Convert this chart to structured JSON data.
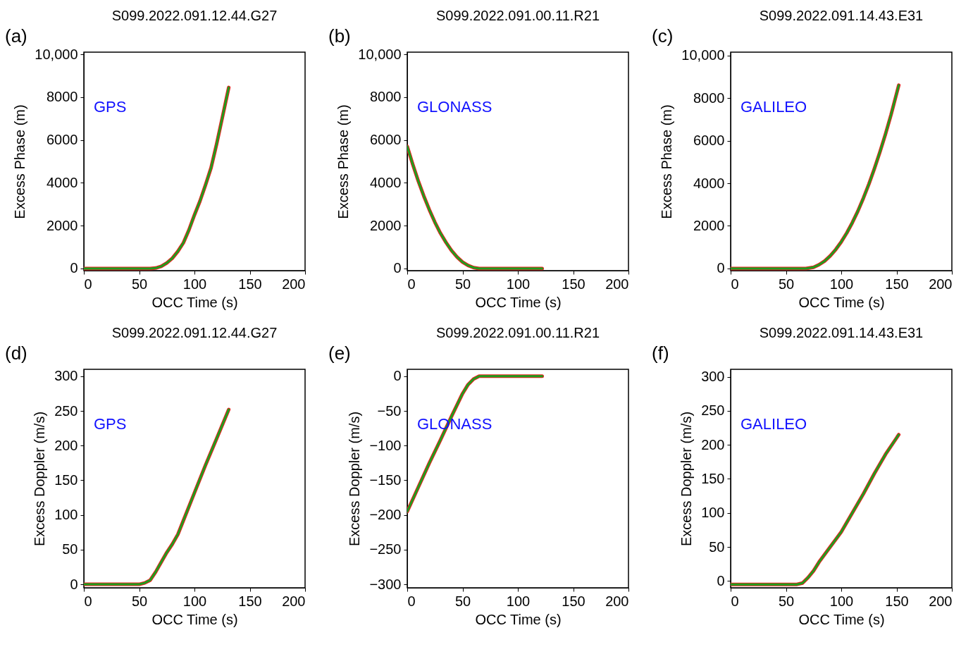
{
  "chart_data": [
    {
      "type": "line",
      "title": "S099.2022.091.12.44.G27",
      "xlabel": "OCC Time (s)",
      "ylabel": "Excess Phase (m)",
      "annotations": [
        "(a)",
        "GPS"
      ],
      "xlim": [
        0,
        200
      ],
      "xticks": [
        0,
        50,
        100,
        150,
        200
      ],
      "ylim": [
        -100,
        10100
      ],
      "yticks": [
        0,
        2000,
        4000,
        6000,
        8000,
        {
          "value": 10000,
          "label": "10,000"
        }
      ],
      "series": [
        {
          "color": "#e8201c",
          "x": [
            0,
            10,
            20,
            30,
            40,
            50,
            60,
            65,
            70,
            75,
            80,
            85,
            90,
            95,
            100,
            105,
            110,
            115,
            120,
            125,
            131
          ],
          "values": [
            0,
            0,
            0,
            0,
            0,
            0,
            0,
            20,
            100,
            260,
            480,
            800,
            1200,
            1800,
            2500,
            3150,
            3900,
            4700,
            5800,
            7000,
            8450
          ]
        },
        {
          "color": "#1e9e1e",
          "x": [
            0,
            10,
            20,
            30,
            40,
            50,
            60,
            65,
            70,
            75,
            80,
            85,
            90,
            95,
            100,
            105,
            110,
            115,
            120,
            125,
            131
          ],
          "values": [
            0,
            0,
            0,
            0,
            0,
            0,
            0,
            20,
            100,
            260,
            480,
            800,
            1200,
            1800,
            2500,
            3150,
            3900,
            4700,
            5800,
            7000,
            8450
          ]
        }
      ]
    },
    {
      "type": "line",
      "title": "S099.2022.091.00.11.R21",
      "xlabel": "OCC Time (s)",
      "ylabel": "Excess Phase (m)",
      "annotations": [
        "(b)",
        "GLONASS"
      ],
      "xlim": [
        0,
        200
      ],
      "xticks": [
        0,
        50,
        100,
        150,
        200
      ],
      "ylim": [
        -100,
        10100
      ],
      "yticks": [
        0,
        2000,
        4000,
        6000,
        8000,
        {
          "value": 10000,
          "label": "10,000"
        }
      ],
      "series": [
        {
          "color": "#e8201c",
          "x": [
            0,
            5,
            10,
            15,
            20,
            25,
            30,
            35,
            40,
            45,
            50,
            55,
            60,
            65,
            80,
            100,
            122
          ],
          "values": [
            5700,
            4860,
            4080,
            3380,
            2740,
            2160,
            1650,
            1220,
            840,
            540,
            300,
            140,
            40,
            0,
            0,
            0,
            0
          ]
        },
        {
          "color": "#1e9e1e",
          "x": [
            0,
            5,
            10,
            15,
            20,
            25,
            30,
            35,
            40,
            45,
            50,
            55,
            60,
            65,
            80,
            100,
            122
          ],
          "values": [
            5700,
            4860,
            4080,
            3380,
            2740,
            2160,
            1650,
            1220,
            840,
            540,
            300,
            140,
            40,
            0,
            0,
            0,
            0
          ]
        }
      ]
    },
    {
      "type": "line",
      "title": "S099.2022.091.14.43.E31",
      "xlabel": "OCC Time (s)",
      "ylabel": "Excess Phase (m)",
      "annotations": [
        "(c)",
        "GALILEO"
      ],
      "xlim": [
        0,
        200
      ],
      "xticks": [
        0,
        50,
        100,
        150,
        200
      ],
      "ylim": [
        -100,
        10150
      ],
      "yticks": [
        0,
        2000,
        4000,
        6000,
        8000,
        {
          "value": 10000,
          "label": "10,000"
        }
      ],
      "series": [
        {
          "color": "#e8201c",
          "x": [
            0,
            20,
            40,
            60,
            68,
            75,
            80,
            85,
            90,
            95,
            100,
            105,
            110,
            115,
            120,
            125,
            130,
            135,
            140,
            145,
            152
          ],
          "values": [
            0,
            0,
            0,
            0,
            0,
            60,
            180,
            350,
            590,
            890,
            1250,
            1670,
            2150,
            2690,
            3300,
            3960,
            4690,
            5470,
            6310,
            7210,
            8600
          ]
        },
        {
          "color": "#1e9e1e",
          "x": [
            0,
            20,
            40,
            60,
            68,
            75,
            80,
            85,
            90,
            95,
            100,
            105,
            110,
            115,
            120,
            125,
            130,
            135,
            140,
            145,
            152
          ],
          "values": [
            0,
            0,
            0,
            0,
            0,
            60,
            180,
            350,
            590,
            890,
            1250,
            1670,
            2150,
            2690,
            3300,
            3960,
            4690,
            5470,
            6310,
            7210,
            8600
          ]
        }
      ]
    },
    {
      "type": "line",
      "title": "S099.2022.091.12.44.G27",
      "xlabel": "OCC Time (s)",
      "ylabel": "Excess Doppler (m/s)",
      "annotations": [
        "(d)",
        "GPS"
      ],
      "xlim": [
        0,
        200
      ],
      "xticks": [
        0,
        50,
        100,
        150,
        200
      ],
      "ylim": [
        -5,
        310
      ],
      "yticks": [
        0,
        50,
        100,
        150,
        200,
        250,
        300
      ],
      "series": [
        {
          "color": "#e8201c",
          "x": [
            0,
            10,
            20,
            30,
            40,
            50,
            55,
            60,
            65,
            70,
            75,
            80,
            85,
            90,
            100,
            110,
            120,
            131
          ],
          "values": [
            0,
            0,
            0,
            0,
            0,
            0,
            2,
            6,
            18,
            32,
            46,
            58,
            72,
            92,
            132,
            172,
            210,
            252
          ]
        },
        {
          "color": "#1e9e1e",
          "x": [
            0,
            10,
            20,
            30,
            40,
            50,
            55,
            60,
            65,
            70,
            75,
            80,
            85,
            90,
            100,
            110,
            120,
            131
          ],
          "values": [
            0,
            0,
            0,
            0,
            0,
            0,
            2,
            6,
            18,
            32,
            46,
            58,
            72,
            92,
            132,
            172,
            210,
            252
          ]
        }
      ]
    },
    {
      "type": "line",
      "title": "S099.2022.091.00.11.R21",
      "xlabel": "OCC Time (s)",
      "ylabel": "Excess Doppler (m/s)",
      "annotations": [
        "(e)",
        "GLONASS"
      ],
      "xlim": [
        0,
        200
      ],
      "xticks": [
        0,
        50,
        100,
        150,
        200
      ],
      "ylim": [
        -305,
        10
      ],
      "yticks": [
        {
          "value": -300,
          "label": "−300"
        },
        {
          "value": -250,
          "label": "−250"
        },
        {
          "value": -200,
          "label": "−200"
        },
        {
          "value": -150,
          "label": "−150"
        },
        {
          "value": -100,
          "label": "−100"
        },
        {
          "value": -50,
          "label": "−50"
        },
        0
      ],
      "series": [
        {
          "color": "#e8201c",
          "x": [
            0,
            10,
            20,
            30,
            40,
            50,
            55,
            60,
            65,
            70,
            90,
            122
          ],
          "values": [
            -195,
            -160,
            -125,
            -92,
            -58,
            -25,
            -12,
            -4,
            0,
            0,
            0,
            0
          ]
        },
        {
          "color": "#1e9e1e",
          "x": [
            0,
            10,
            20,
            30,
            40,
            50,
            55,
            60,
            65,
            70,
            90,
            122
          ],
          "values": [
            -195,
            -160,
            -125,
            -92,
            -58,
            -25,
            -12,
            -4,
            0,
            0,
            0,
            0
          ]
        }
      ]
    },
    {
      "type": "line",
      "title": "S099.2022.091.14.43.E31",
      "xlabel": "OCC Time (s)",
      "ylabel": "Excess Doppler (m/s)",
      "annotations": [
        "(f)",
        "GALILEO"
      ],
      "xlim": [
        0,
        200
      ],
      "xticks": [
        0,
        50,
        100,
        150,
        200
      ],
      "ylim": [
        -10,
        311
      ],
      "yticks": [
        0,
        50,
        100,
        150,
        200,
        250,
        300
      ],
      "series": [
        {
          "color": "#e8201c",
          "x": [
            0,
            20,
            40,
            60,
            65,
            70,
            75,
            80,
            90,
            100,
            110,
            120,
            130,
            140,
            152
          ],
          "values": [
            -5,
            -5,
            -5,
            -5,
            -3,
            5,
            15,
            28,
            50,
            72,
            100,
            128,
            158,
            186,
            215
          ]
        },
        {
          "color": "#1e9e1e",
          "x": [
            0,
            20,
            40,
            60,
            65,
            70,
            75,
            80,
            90,
            100,
            110,
            120,
            130,
            140,
            152
          ],
          "values": [
            -5,
            -5,
            -5,
            -5,
            -3,
            5,
            15,
            28,
            50,
            72,
            100,
            128,
            158,
            186,
            215
          ]
        }
      ]
    }
  ]
}
